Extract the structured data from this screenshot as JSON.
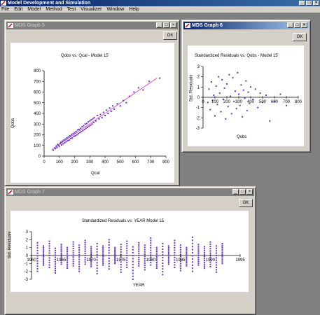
{
  "app": {
    "title": "Model Development and Simulation",
    "menu": [
      "File",
      "Edit",
      "Model",
      "Method",
      "Test",
      "Visualizer",
      "Window",
      "Help"
    ],
    "controls": [
      "_",
      "□",
      "×"
    ]
  },
  "windows": [
    {
      "title": "MDS Graph   5",
      "active": false,
      "ok_label": "OK",
      "plot_title": "Qobs vs. Qcal - Model        15",
      "chart_data": {
        "type": "scatter",
        "title": "Qobs vs. Qcal - Model        15",
        "xlabel": "Qcal",
        "ylabel": "Qobs",
        "xlim": [
          0,
          800
        ],
        "ylim": [
          0,
          800
        ],
        "xticks": [
          0,
          100,
          200,
          300,
          400,
          500,
          600,
          700,
          800
        ],
        "yticks": [
          0,
          100,
          200,
          300,
          400,
          500,
          600,
          700,
          800
        ],
        "point_color": "#6633cc",
        "fit_line_color": "#cc33cc",
        "fit_line": [
          [
            50,
            60
          ],
          [
            740,
            730
          ]
        ],
        "points": [
          [
            60,
            55
          ],
          [
            70,
            75
          ],
          [
            75,
            70
          ],
          [
            80,
            95
          ],
          [
            85,
            80
          ],
          [
            90,
            110
          ],
          [
            95,
            100
          ],
          [
            100,
            90
          ],
          [
            105,
            120
          ],
          [
            110,
            130
          ],
          [
            115,
            105
          ],
          [
            120,
            140
          ],
          [
            125,
            115
          ],
          [
            130,
            150
          ],
          [
            135,
            125
          ],
          [
            140,
            160
          ],
          [
            145,
            135
          ],
          [
            150,
            170
          ],
          [
            155,
            145
          ],
          [
            160,
            180
          ],
          [
            165,
            150
          ],
          [
            170,
            190
          ],
          [
            175,
            165
          ],
          [
            180,
            200
          ],
          [
            185,
            170
          ],
          [
            190,
            210
          ],
          [
            195,
            185
          ],
          [
            200,
            220
          ],
          [
            205,
            190
          ],
          [
            210,
            230
          ],
          [
            215,
            200
          ],
          [
            220,
            245
          ],
          [
            225,
            210
          ],
          [
            230,
            250
          ],
          [
            235,
            220
          ],
          [
            240,
            260
          ],
          [
            245,
            230
          ],
          [
            250,
            275
          ],
          [
            255,
            240
          ],
          [
            260,
            285
          ],
          [
            265,
            250
          ],
          [
            270,
            300
          ],
          [
            275,
            260
          ],
          [
            280,
            305
          ],
          [
            285,
            270
          ],
          [
            290,
            320
          ],
          [
            295,
            280
          ],
          [
            300,
            330
          ],
          [
            305,
            290
          ],
          [
            310,
            340
          ],
          [
            315,
            300
          ],
          [
            320,
            350
          ],
          [
            325,
            315
          ],
          [
            330,
            360
          ],
          [
            340,
            330
          ],
          [
            350,
            380
          ],
          [
            360,
            350
          ],
          [
            370,
            390
          ],
          [
            380,
            360
          ],
          [
            390,
            410
          ],
          [
            400,
            380
          ],
          [
            410,
            430
          ],
          [
            420,
            400
          ],
          [
            430,
            450
          ],
          [
            440,
            420
          ],
          [
            450,
            470
          ],
          [
            460,
            440
          ],
          [
            480,
            490
          ],
          [
            500,
            470
          ],
          [
            520,
            520
          ],
          [
            540,
            500
          ],
          [
            560,
            560
          ],
          [
            590,
            600
          ],
          [
            620,
            640
          ],
          [
            650,
            620
          ],
          [
            690,
            700
          ],
          [
            760,
            730
          ]
        ]
      }
    },
    {
      "title": "MDS Graph   6",
      "active": true,
      "ok_label": "OK",
      "plot_title": "Standardized Residuals vs. Qobs - Model        15",
      "chart_data": {
        "type": "scatter",
        "title": "Standardized Residuals vs. Qobs - Model        15",
        "xlabel": "Qobs",
        "ylabel": "Std. Residuals",
        "xlim": [
          0,
          800
        ],
        "ylim": [
          -3,
          3
        ],
        "xticks": [
          0,
          100,
          200,
          300,
          400,
          500,
          600,
          700,
          800
        ],
        "yticks": [
          -3,
          -2,
          -1,
          0,
          1,
          2,
          3
        ],
        "point_color": "#6633cc",
        "points": [
          [
            40,
            -0.5
          ],
          [
            50,
            0.8
          ],
          [
            60,
            -1.2
          ],
          [
            70,
            1.5
          ],
          [
            80,
            -0.3
          ],
          [
            90,
            0.2
          ],
          [
            100,
            -1.8
          ],
          [
            110,
            1.1
          ],
          [
            120,
            -0.7
          ],
          [
            130,
            2.0
          ],
          [
            140,
            0.4
          ],
          [
            150,
            -1.4
          ],
          [
            160,
            1.7
          ],
          [
            170,
            -0.2
          ],
          [
            180,
            0.9
          ],
          [
            190,
            -2.1
          ],
          [
            200,
            1.3
          ],
          [
            210,
            -0.9
          ],
          [
            220,
            2.2
          ],
          [
            230,
            0.1
          ],
          [
            240,
            -1.6
          ],
          [
            250,
            1.9
          ],
          [
            260,
            -0.4
          ],
          [
            270,
            0.6
          ],
          [
            280,
            -1.1
          ],
          [
            290,
            2.4
          ],
          [
            300,
            0.3
          ],
          [
            310,
            -0.8
          ],
          [
            320,
            1.2
          ],
          [
            330,
            -1.9
          ],
          [
            340,
            0.7
          ],
          [
            350,
            -0.1
          ],
          [
            360,
            1.6
          ],
          [
            370,
            -1.3
          ],
          [
            380,
            0.5
          ],
          [
            390,
            -0.6
          ],
          [
            400,
            1.0
          ],
          [
            420,
            -0.2
          ],
          [
            440,
            0.8
          ],
          [
            460,
            -1.0
          ],
          [
            480,
            0.4
          ],
          [
            500,
            -0.5
          ],
          [
            530,
            0.2
          ],
          [
            560,
            -2.3
          ],
          [
            600,
            -0.4
          ],
          [
            650,
            0.3
          ],
          [
            700,
            -0.8
          ]
        ]
      }
    },
    {
      "title": "MDS Graph   7",
      "active": false,
      "ok_label": "OK",
      "plot_title": "Standardized Residuals vs.  YEAR     Model        15",
      "chart_data": {
        "type": "scatter",
        "title": "Standardized Residuals vs.  YEAR     Model        15",
        "xlabel": "YEAR",
        "ylabel": "Std. Residuals",
        "xlim": [
          1960,
          1995
        ],
        "ylim": [
          -3,
          3
        ],
        "xticks": [
          1960,
          1965,
          1970,
          1975,
          1980,
          1985,
          1990,
          1995
        ],
        "yticks": [
          -3,
          -2,
          -1,
          0,
          1,
          2,
          3
        ],
        "point_color": "#6633cc",
        "columns": [
          1961,
          1962,
          1963,
          1964,
          1965,
          1966,
          1967,
          1968,
          1969,
          1970,
          1971,
          1972,
          1973,
          1974,
          1975,
          1976,
          1977,
          1978,
          1979,
          1980,
          1981,
          1982,
          1983,
          1984,
          1985,
          1986,
          1987,
          1988,
          1989,
          1990,
          1991,
          1992
        ],
        "column_min": [
          -2.0,
          -1.2,
          -1.5,
          -2.2,
          -1.1,
          -1.6,
          -1.3,
          -2.0,
          -1.1,
          -1.4,
          -2.3,
          -1.2,
          -1.7,
          -1.0,
          -2.1,
          -1.5,
          -3.0,
          -1.3,
          -1.8,
          -1.2,
          -1.6,
          -2.4,
          -1.1,
          -1.5,
          -1.9,
          -1.3,
          -2.0,
          -1.2,
          -1.6,
          -1.4,
          -2.1,
          -1.0
        ],
        "column_max": [
          1.6,
          1.2,
          1.8,
          0.9,
          1.4,
          1.0,
          1.7,
          1.3,
          1.9,
          1.1,
          1.5,
          1.2,
          2.0,
          1.0,
          1.4,
          1.8,
          1.1,
          1.6,
          1.3,
          2.2,
          1.0,
          1.5,
          1.2,
          1.9,
          1.3,
          1.0,
          2.3,
          1.4,
          1.1,
          1.7,
          1.2,
          1.5
        ]
      }
    }
  ]
}
